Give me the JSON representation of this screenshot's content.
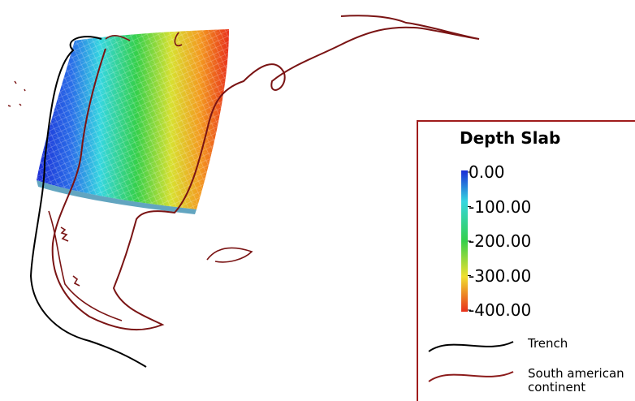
{
  "colorbar": {
    "title": "Depth Slab",
    "range": [
      0,
      -400
    ],
    "ticks": [
      {
        "value": 0,
        "label": "0.00"
      },
      {
        "value": -100,
        "label": "-100.00"
      },
      {
        "value": -200,
        "label": "-200.00"
      },
      {
        "value": -300,
        "label": "-300.00"
      },
      {
        "value": -400,
        "label": "-400.00"
      }
    ]
  },
  "legend": [
    {
      "name": "Trench",
      "color": "#000000"
    },
    {
      "name": "South american continent",
      "color": "#8b1a1a"
    }
  ]
}
